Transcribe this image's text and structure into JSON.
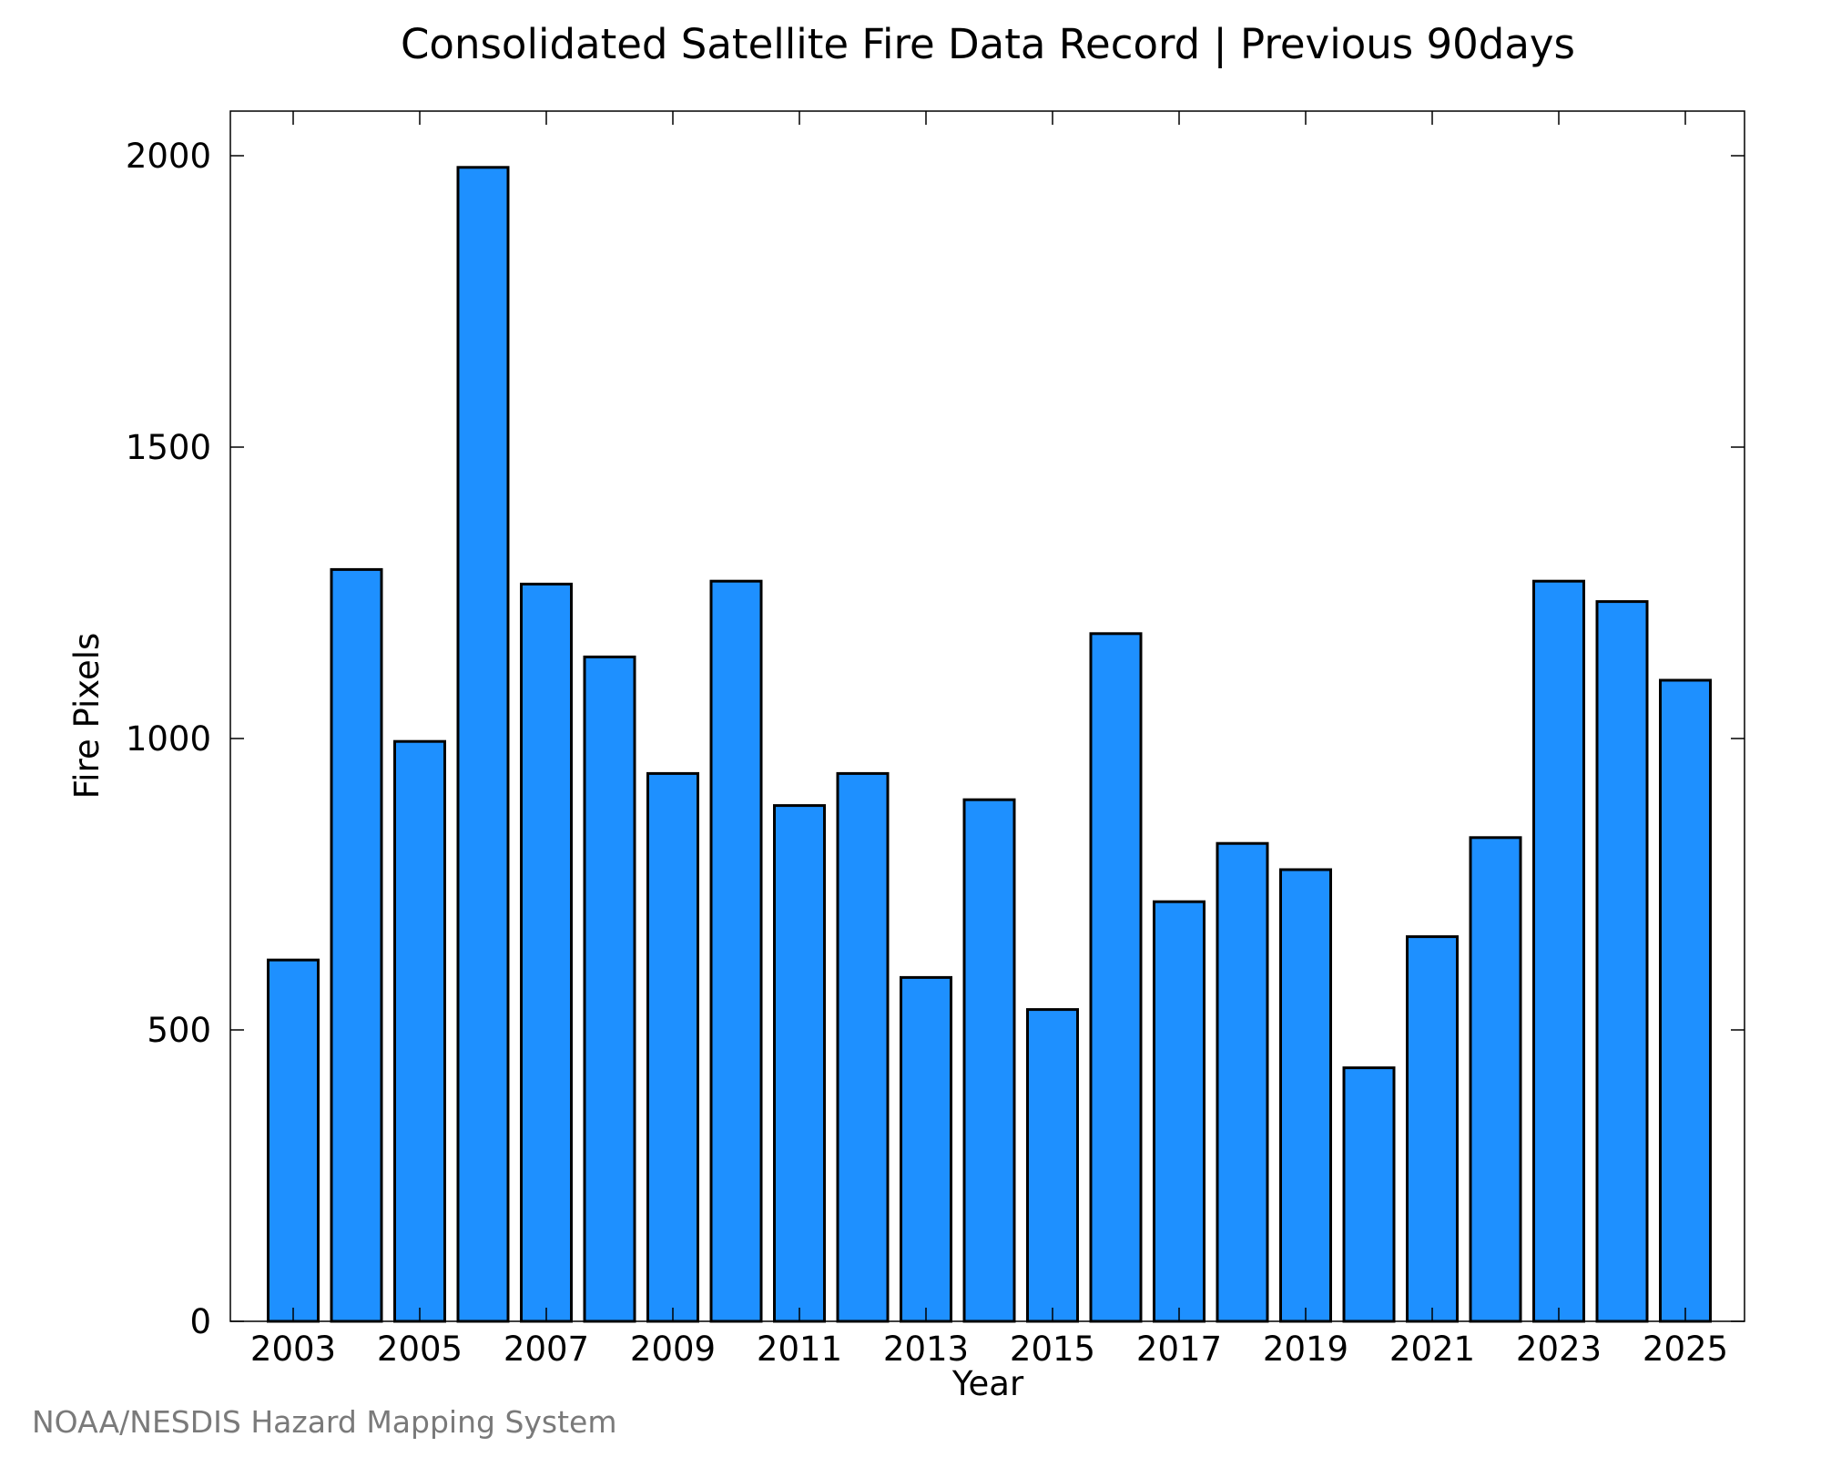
{
  "chart_data": {
    "type": "bar",
    "title": "Consolidated Satellite Fire Data Record | Previous 90days",
    "xlabel": "Year",
    "ylabel": "Fire Pixels",
    "categories": [
      "2003",
      "2004",
      "2005",
      "2006",
      "2007",
      "2008",
      "2009",
      "2010",
      "2011",
      "2012",
      "2013",
      "2014",
      "2015",
      "2016",
      "2017",
      "2018",
      "2019",
      "2020",
      "2021",
      "2022",
      "2023",
      "2024",
      "2025"
    ],
    "values": [
      620,
      1290,
      995,
      1980,
      1265,
      1140,
      940,
      1270,
      885,
      940,
      590,
      895,
      535,
      1180,
      720,
      820,
      775,
      435,
      660,
      830,
      1270,
      1235,
      1100
    ],
    "x_tick_labels": [
      "2003",
      "2005",
      "2007",
      "2009",
      "2011",
      "2013",
      "2015",
      "2017",
      "2019",
      "2021",
      "2023",
      "2025"
    ],
    "y_ticks": [
      0,
      500,
      1000,
      1500,
      2000
    ],
    "ylim": [
      0,
      2080
    ],
    "grid": false,
    "bar_color": "#1E90FF",
    "bar_edge_color": "#000000",
    "source_credit": "NOAA/NESDIS Hazard Mapping System"
  }
}
